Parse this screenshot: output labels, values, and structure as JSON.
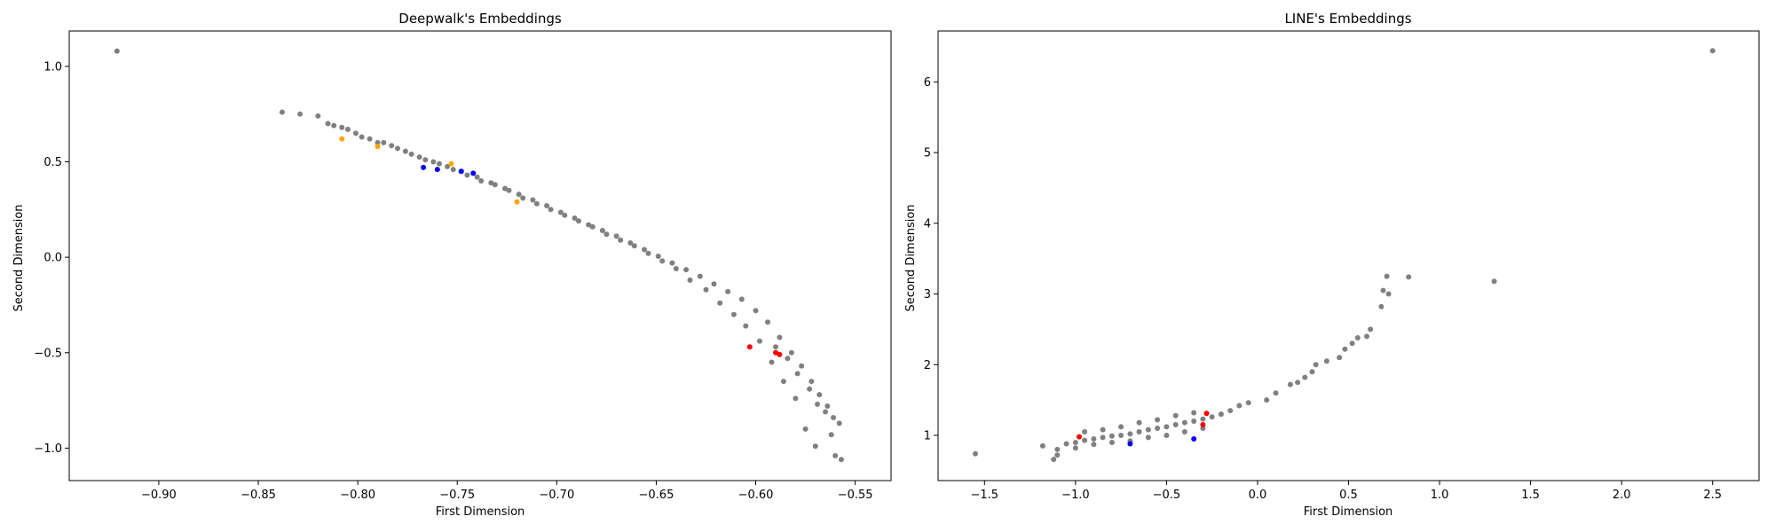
{
  "chart_data": [
    {
      "type": "scatter",
      "title": "Deepwalk's Embeddings",
      "xlabel": "First Dimension",
      "ylabel": "Second Dimension",
      "xlim": [
        -0.945,
        -0.532
      ],
      "ylim": [
        -1.17,
        1.185
      ],
      "xticks": [
        -0.9,
        -0.85,
        -0.8,
        -0.75,
        -0.7,
        -0.65,
        -0.6,
        -0.55
      ],
      "xtick_labels": [
        "−0.90",
        "−0.85",
        "−0.80",
        "−0.75",
        "−0.70",
        "−0.65",
        "−0.60",
        "−0.55"
      ],
      "yticks": [
        -1.0,
        -0.5,
        0.0,
        0.5,
        1.0
      ],
      "ytick_labels": [
        "−1.0",
        "−0.5",
        "0.0",
        "0.5",
        "1.0"
      ],
      "grid": false,
      "series": [
        {
          "color": "#808080",
          "points": [
            [
              -0.921,
              1.08
            ],
            [
              -0.838,
              0.76
            ],
            [
              -0.829,
              0.75
            ],
            [
              -0.82,
              0.74
            ],
            [
              -0.812,
              0.69
            ],
            [
              -0.805,
              0.67
            ],
            [
              -0.798,
              0.63
            ],
            [
              -0.79,
              0.6
            ],
            [
              -0.783,
              0.585
            ],
            [
              -0.776,
              0.555
            ],
            [
              -0.769,
              0.525
            ],
            [
              -0.762,
              0.5
            ],
            [
              -0.755,
              0.475
            ],
            [
              -0.748,
              0.45
            ],
            [
              -0.74,
              0.42
            ],
            [
              -0.733,
              0.39
            ],
            [
              -0.726,
              0.36
            ],
            [
              -0.719,
              0.33
            ],
            [
              -0.712,
              0.3
            ],
            [
              -0.705,
              0.27
            ],
            [
              -0.698,
              0.235
            ],
            [
              -0.691,
              0.205
            ],
            [
              -0.684,
              0.17
            ],
            [
              -0.677,
              0.14
            ],
            [
              -0.67,
              0.11
            ],
            [
              -0.663,
              0.075
            ],
            [
              -0.656,
              0.04
            ],
            [
              -0.649,
              0.005
            ],
            [
              -0.642,
              -0.03
            ],
            [
              -0.635,
              -0.065
            ],
            [
              -0.628,
              -0.1
            ],
            [
              -0.621,
              -0.14
            ],
            [
              -0.614,
              -0.18
            ],
            [
              -0.607,
              -0.22
            ],
            [
              -0.6,
              -0.28
            ],
            [
              -0.594,
              -0.34
            ],
            [
              -0.588,
              -0.42
            ],
            [
              -0.582,
              -0.5
            ],
            [
              -0.577,
              -0.57
            ],
            [
              -0.572,
              -0.65
            ],
            [
              -0.568,
              -0.72
            ],
            [
              -0.564,
              -0.78
            ],
            [
              -0.561,
              -0.84
            ],
            [
              -0.558,
              -0.87
            ],
            [
              -0.562,
              -0.93
            ],
            [
              -0.57,
              -0.99
            ],
            [
              -0.56,
              -1.04
            ],
            [
              -0.557,
              -1.06
            ],
            [
              -0.575,
              -0.9
            ],
            [
              -0.58,
              -0.74
            ],
            [
              -0.586,
              -0.65
            ],
            [
              -0.592,
              -0.55
            ],
            [
              -0.598,
              -0.44
            ],
            [
              -0.605,
              -0.36
            ],
            [
              -0.611,
              -0.3
            ],
            [
              -0.618,
              -0.24
            ],
            [
              -0.625,
              -0.17
            ],
            [
              -0.633,
              -0.12
            ],
            [
              -0.64,
              -0.06
            ],
            [
              -0.647,
              -0.02
            ],
            [
              -0.654,
              0.02
            ],
            [
              -0.661,
              0.06
            ],
            [
              -0.668,
              0.09
            ],
            [
              -0.675,
              0.12
            ],
            [
              -0.682,
              0.16
            ],
            [
              -0.689,
              0.19
            ],
            [
              -0.696,
              0.22
            ],
            [
              -0.703,
              0.25
            ],
            [
              -0.71,
              0.28
            ],
            [
              -0.717,
              0.31
            ],
            [
              -0.724,
              0.35
            ],
            [
              -0.731,
              0.38
            ],
            [
              -0.738,
              0.4
            ],
            [
              -0.745,
              0.43
            ],
            [
              -0.752,
              0.46
            ],
            [
              -0.759,
              0.49
            ],
            [
              -0.766,
              0.51
            ],
            [
              -0.773,
              0.54
            ],
            [
              -0.78,
              0.57
            ],
            [
              -0.787,
              0.6
            ],
            [
              -0.794,
              0.62
            ],
            [
              -0.801,
              0.65
            ],
            [
              -0.808,
              0.68
            ],
            [
              -0.815,
              0.7
            ],
            [
              -0.565,
              -0.81
            ],
            [
              -0.569,
              -0.77
            ],
            [
              -0.573,
              -0.69
            ],
            [
              -0.579,
              -0.61
            ],
            [
              -0.584,
              -0.53
            ],
            [
              -0.59,
              -0.47
            ]
          ]
        },
        {
          "color": "#ffa500",
          "points": [
            [
              -0.808,
              0.62
            ],
            [
              -0.79,
              0.58
            ],
            [
              -0.753,
              0.49
            ],
            [
              -0.72,
              0.29
            ]
          ]
        },
        {
          "color": "#0000ff",
          "points": [
            [
              -0.767,
              0.47
            ],
            [
              -0.76,
              0.46
            ],
            [
              -0.748,
              0.45
            ],
            [
              -0.742,
              0.44
            ]
          ]
        },
        {
          "color": "#ff0000",
          "points": [
            [
              -0.59,
              -0.5
            ],
            [
              -0.588,
              -0.51
            ],
            [
              -0.603,
              -0.47
            ]
          ]
        }
      ]
    },
    {
      "type": "scatter",
      "title": "LINE's Embeddings",
      "xlabel": "First Dimension",
      "ylabel": "Second Dimension",
      "xlim": [
        -1.755,
        2.755
      ],
      "ylim": [
        0.36,
        6.72
      ],
      "xticks": [
        -1.5,
        -1.0,
        -0.5,
        0.0,
        0.5,
        1.0,
        1.5,
        2.0,
        2.5
      ],
      "xtick_labels": [
        "−1.5",
        "−1.0",
        "−0.5",
        "0.0",
        "0.5",
        "1.0",
        "1.5",
        "2.0",
        "2.5"
      ],
      "yticks": [
        1,
        2,
        3,
        4,
        5,
        6
      ],
      "ytick_labels": [
        "1",
        "2",
        "3",
        "4",
        "5",
        "6"
      ],
      "grid": false,
      "series": [
        {
          "color": "#808080",
          "points": [
            [
              2.5,
              6.44
            ],
            [
              -1.55,
              0.74
            ],
            [
              -1.18,
              0.85
            ],
            [
              -1.1,
              0.8
            ],
            [
              -1.05,
              0.88
            ],
            [
              -1.0,
              0.9
            ],
            [
              -0.95,
              0.93
            ],
            [
              -0.9,
              0.95
            ],
            [
              -0.85,
              0.97
            ],
            [
              -0.8,
              0.99
            ],
            [
              -0.75,
              1.0
            ],
            [
              -0.7,
              1.02
            ],
            [
              -0.65,
              1.05
            ],
            [
              -0.6,
              1.08
            ],
            [
              -0.55,
              1.1
            ],
            [
              -0.5,
              1.12
            ],
            [
              -0.45,
              1.15
            ],
            [
              -0.4,
              1.18
            ],
            [
              -0.35,
              1.2
            ],
            [
              -0.3,
              1.23
            ],
            [
              -0.25,
              1.26
            ],
            [
              -0.2,
              1.3
            ],
            [
              -0.15,
              1.35
            ],
            [
              -0.1,
              1.42
            ],
            [
              -0.05,
              1.46
            ],
            [
              -1.1,
              0.72
            ],
            [
              -1.0,
              0.82
            ],
            [
              -0.9,
              0.87
            ],
            [
              -0.8,
              0.9
            ],
            [
              -0.7,
              0.92
            ],
            [
              -0.6,
              0.97
            ],
            [
              -0.5,
              1.0
            ],
            [
              -0.4,
              1.05
            ],
            [
              -0.3,
              1.1
            ],
            [
              -0.95,
              1.05
            ],
            [
              -0.85,
              1.08
            ],
            [
              -0.75,
              1.12
            ],
            [
              -0.65,
              1.18
            ],
            [
              -0.55,
              1.22
            ],
            [
              -0.45,
              1.28
            ],
            [
              -0.35,
              1.32
            ],
            [
              0.05,
              1.5
            ],
            [
              0.1,
              1.6
            ],
            [
              0.18,
              1.72
            ],
            [
              0.22,
              1.75
            ],
            [
              0.26,
              1.82
            ],
            [
              0.3,
              1.9
            ],
            [
              0.32,
              2.0
            ],
            [
              0.38,
              2.05
            ],
            [
              0.45,
              2.1
            ],
            [
              0.48,
              2.22
            ],
            [
              0.52,
              2.3
            ],
            [
              0.55,
              2.38
            ],
            [
              0.6,
              2.4
            ],
            [
              0.62,
              2.5
            ],
            [
              0.68,
              2.82
            ],
            [
              0.69,
              3.05
            ],
            [
              0.72,
              3.0
            ],
            [
              0.71,
              3.25
            ],
            [
              0.83,
              3.24
            ],
            [
              1.3,
              3.18
            ],
            [
              -1.12,
              0.66
            ]
          ]
        },
        {
          "color": "#0000ff",
          "points": [
            [
              -0.35,
              0.95
            ],
            [
              -0.7,
              0.88
            ]
          ]
        },
        {
          "color": "#ff0000",
          "points": [
            [
              -0.98,
              0.98
            ],
            [
              -0.3,
              1.15
            ],
            [
              -0.28,
              1.31
            ]
          ]
        }
      ]
    }
  ]
}
